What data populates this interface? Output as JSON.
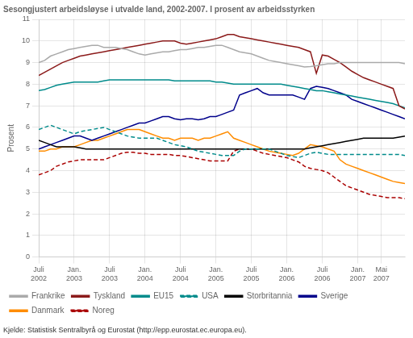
{
  "chart_data": {
    "type": "line",
    "title": "Sesongjustert arbeidsløyse i utvalde land, 2002-2007. I prosent av arbeidsstyrken",
    "ylabel": "Prosent",
    "footnote": "Kjelde: Statistisk Sentralbyrå og Eurostat (http://epp.eurostat.ec.europa.eu).",
    "x": [
      0,
      1,
      2,
      3,
      4,
      5,
      6,
      7,
      8,
      9,
      10,
      11,
      12,
      13,
      14,
      15,
      16,
      17,
      18,
      19,
      20,
      21,
      22,
      23,
      24,
      25,
      26,
      27,
      28,
      29,
      30,
      31,
      32,
      33,
      34,
      35,
      36,
      37,
      38,
      39,
      40,
      41,
      42,
      43,
      44,
      45,
      46,
      47,
      48,
      49,
      50,
      51,
      52,
      53,
      54,
      55,
      56,
      57,
      58,
      59,
      60,
      61,
      62
    ],
    "xlim": [
      0,
      62
    ],
    "xticks": [
      {
        "value": 0,
        "label": "Juli\n2002"
      },
      {
        "value": 6,
        "label": "Jan.\n2003"
      },
      {
        "value": 12,
        "label": "Juli\n2003"
      },
      {
        "value": 18,
        "label": "Jan.\n2004"
      },
      {
        "value": 24,
        "label": "Juli\n2004"
      },
      {
        "value": 30,
        "label": "Jan.\n2005"
      },
      {
        "value": 36,
        "label": "Juli\n2005"
      },
      {
        "value": 42,
        "label": "Jan.\n2006"
      },
      {
        "value": 48,
        "label": "Juli\n2006"
      },
      {
        "value": 54,
        "label": "Jan.\n2007"
      },
      {
        "value": 58,
        "label": "Mai\n2007"
      }
    ],
    "ylim": [
      0,
      11
    ],
    "yticks": [
      0,
      1,
      2,
      3,
      4,
      5,
      6,
      7,
      8,
      9,
      10,
      11
    ],
    "grid": true,
    "legend": "bottom",
    "series": [
      {
        "name": "Frankrike",
        "color": "#aaaaaa",
        "line_style": "solid",
        "values": [
          9.0,
          9.1,
          9.3,
          9.4,
          9.5,
          9.6,
          9.65,
          9.7,
          9.75,
          9.8,
          9.8,
          9.7,
          9.7,
          9.7,
          9.65,
          9.6,
          9.5,
          9.4,
          9.35,
          9.4,
          9.45,
          9.5,
          9.5,
          9.55,
          9.6,
          9.6,
          9.65,
          9.7,
          9.7,
          9.75,
          9.8,
          9.8,
          9.7,
          9.6,
          9.5,
          9.45,
          9.4,
          9.3,
          9.2,
          9.1,
          9.05,
          9.0,
          8.95,
          8.9,
          8.85,
          8.8,
          8.82,
          8.85,
          8.9,
          8.95,
          8.95,
          9.0,
          9.0,
          9.0,
          9.0,
          9.0,
          9.0,
          9.0,
          9.0,
          9.0,
          9.0,
          9.0,
          8.95
        ]
      },
      {
        "name": "Tyskland",
        "color": "#8b1a1a",
        "line_style": "solid",
        "values": [
          8.4,
          8.55,
          8.7,
          8.85,
          9.0,
          9.1,
          9.2,
          9.3,
          9.35,
          9.4,
          9.45,
          9.5,
          9.55,
          9.6,
          9.65,
          9.7,
          9.75,
          9.8,
          9.85,
          9.9,
          9.95,
          10.0,
          10.0,
          10.0,
          9.9,
          9.85,
          9.9,
          9.95,
          10.0,
          10.05,
          10.1,
          10.2,
          10.3,
          10.3,
          10.2,
          10.15,
          10.1,
          10.05,
          10.0,
          9.95,
          9.9,
          9.85,
          9.8,
          9.75,
          9.7,
          9.6,
          9.5,
          8.5,
          9.35,
          9.3,
          9.15,
          9.0,
          8.8,
          8.6,
          8.45,
          8.3,
          8.2,
          8.1,
          8.0,
          7.9,
          7.8,
          7.0,
          6.85
        ]
      },
      {
        "name": "EU15",
        "color": "#008b8b",
        "line_style": "solid",
        "values": [
          7.7,
          7.75,
          7.85,
          7.95,
          8.0,
          8.05,
          8.1,
          8.1,
          8.1,
          8.1,
          8.1,
          8.15,
          8.2,
          8.2,
          8.2,
          8.2,
          8.2,
          8.2,
          8.2,
          8.2,
          8.2,
          8.2,
          8.2,
          8.15,
          8.15,
          8.15,
          8.15,
          8.15,
          8.15,
          8.15,
          8.1,
          8.1,
          8.05,
          8.0,
          8.0,
          8.0,
          8.0,
          8.0,
          8.0,
          8.0,
          8.0,
          8.0,
          7.95,
          7.9,
          7.85,
          7.8,
          7.75,
          7.7,
          7.7,
          7.65,
          7.6,
          7.55,
          7.5,
          7.45,
          7.4,
          7.35,
          7.3,
          7.25,
          7.2,
          7.15,
          7.1,
          7.0,
          6.9
        ]
      },
      {
        "name": "USA",
        "color": "#008b8b",
        "line_style": "dashed",
        "values": [
          5.9,
          6.0,
          6.1,
          6.0,
          5.9,
          5.8,
          5.7,
          5.8,
          5.85,
          5.9,
          5.95,
          6.0,
          5.9,
          5.8,
          5.7,
          5.6,
          5.55,
          5.5,
          5.5,
          5.5,
          5.5,
          5.4,
          5.3,
          5.2,
          5.15,
          5.1,
          5.0,
          4.9,
          4.85,
          4.8,
          4.75,
          4.7,
          4.7,
          4.7,
          4.9,
          5.0,
          5.0,
          5.0,
          5.0,
          5.0,
          4.9,
          4.8,
          4.7,
          4.65,
          4.6,
          4.7,
          4.8,
          4.85,
          4.8,
          4.75,
          4.75,
          4.75,
          4.75,
          4.75,
          4.75,
          4.75,
          4.75,
          4.75,
          4.75,
          4.75,
          4.75,
          4.75,
          4.7
        ]
      },
      {
        "name": "Storbritannia",
        "color": "#000000",
        "line_style": "solid",
        "values": [
          5.4,
          5.3,
          5.2,
          5.1,
          5.1,
          5.1,
          5.1,
          5.05,
          5.0,
          5.0,
          5.0,
          5.0,
          5.0,
          5.0,
          5.0,
          5.0,
          5.0,
          5.0,
          5.0,
          5.0,
          5.0,
          5.0,
          5.0,
          5.0,
          5.0,
          5.0,
          5.0,
          5.0,
          5.0,
          5.0,
          5.0,
          5.0,
          5.0,
          5.0,
          5.0,
          5.0,
          5.0,
          5.0,
          5.0,
          5.0,
          5.0,
          5.0,
          5.0,
          5.0,
          5.0,
          5.0,
          5.05,
          5.1,
          5.15,
          5.2,
          5.25,
          5.3,
          5.35,
          5.4,
          5.45,
          5.5,
          5.5,
          5.5,
          5.5,
          5.5,
          5.5,
          5.55,
          5.6
        ]
      },
      {
        "name": "Sverige",
        "color": "#00008b",
        "line_style": "solid",
        "values": [
          5.0,
          5.1,
          5.2,
          5.3,
          5.4,
          5.5,
          5.6,
          5.6,
          5.5,
          5.4,
          5.5,
          5.6,
          5.7,
          5.8,
          5.9,
          6.0,
          6.1,
          6.2,
          6.2,
          6.3,
          6.4,
          6.5,
          6.5,
          6.4,
          6.35,
          6.4,
          6.4,
          6.35,
          6.4,
          6.5,
          6.5,
          6.6,
          6.7,
          6.8,
          7.5,
          7.6,
          7.7,
          7.8,
          7.6,
          7.5,
          7.5,
          7.5,
          7.5,
          7.5,
          7.4,
          7.3,
          7.8,
          7.9,
          7.85,
          7.8,
          7.7,
          7.6,
          7.5,
          7.3,
          7.2,
          7.1,
          7.0,
          6.9,
          6.8,
          6.7,
          6.6,
          6.5,
          6.4
        ]
      },
      {
        "name": "Danmark",
        "color": "#ff8c00",
        "line_style": "solid",
        "values": [
          4.9,
          4.9,
          5.0,
          5.0,
          5.1,
          5.1,
          5.1,
          5.2,
          5.3,
          5.4,
          5.4,
          5.5,
          5.6,
          5.7,
          5.8,
          5.9,
          5.9,
          5.9,
          5.8,
          5.7,
          5.6,
          5.5,
          5.5,
          5.4,
          5.5,
          5.5,
          5.5,
          5.4,
          5.5,
          5.5,
          5.6,
          5.7,
          5.8,
          5.5,
          5.4,
          5.3,
          5.2,
          5.1,
          5.0,
          4.9,
          4.85,
          4.8,
          4.75,
          4.7,
          4.8,
          5.0,
          5.2,
          5.15,
          5.1,
          5.0,
          4.9,
          4.5,
          4.3,
          4.2,
          4.1,
          4.0,
          3.9,
          3.8,
          3.7,
          3.6,
          3.5,
          3.45,
          3.4
        ]
      },
      {
        "name": "Noreg",
        "color": "#aa0000",
        "line_style": "dashed",
        "values": [
          3.8,
          3.9,
          4.0,
          4.2,
          4.3,
          4.4,
          4.45,
          4.5,
          4.5,
          4.5,
          4.5,
          4.5,
          4.6,
          4.7,
          4.8,
          4.85,
          4.85,
          4.8,
          4.8,
          4.75,
          4.75,
          4.75,
          4.75,
          4.7,
          4.7,
          4.65,
          4.6,
          4.55,
          4.5,
          4.45,
          4.45,
          4.45,
          4.45,
          4.9,
          5.0,
          5.0,
          5.0,
          4.9,
          4.8,
          4.75,
          4.7,
          4.65,
          4.6,
          4.5,
          4.4,
          4.2,
          4.1,
          4.05,
          4.0,
          3.9,
          3.7,
          3.5,
          3.3,
          3.2,
          3.1,
          3.0,
          2.9,
          2.85,
          2.8,
          2.75,
          2.75,
          2.75,
          2.7
        ]
      }
    ]
  }
}
